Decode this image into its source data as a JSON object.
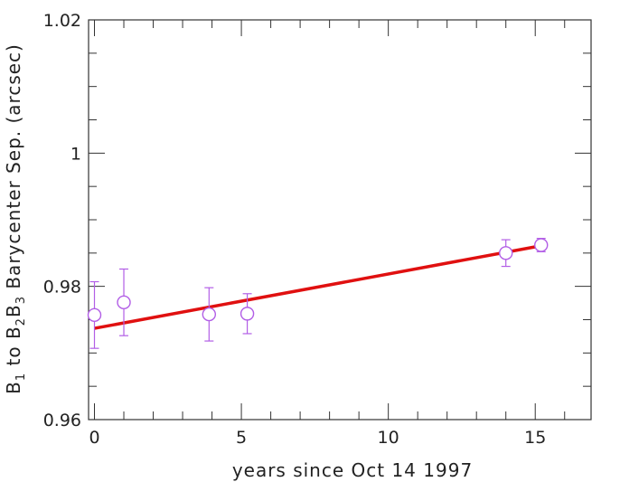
{
  "chart_data": {
    "type": "scatter",
    "title": "",
    "xlabel": "years since Oct 14 1997",
    "ylabel": {
      "parts": [
        "B",
        "1",
        " to B",
        "2",
        "B",
        "3",
        " Barycenter Sep. (arcsec)"
      ]
    },
    "xlim": [
      -0.2,
      16.9
    ],
    "ylim": [
      0.96,
      1.02
    ],
    "x_ticks": [
      0,
      5,
      10,
      15
    ],
    "x_tick_labels": [
      "0",
      "5",
      "10",
      "15"
    ],
    "y_ticks": [
      0.96,
      0.98,
      1.0,
      1.02
    ],
    "y_tick_labels": [
      "0.96",
      "0.98",
      "1",
      "1.02"
    ],
    "x_minor_step": 1,
    "y_minor_step": 0.005,
    "grid": false,
    "series": [
      {
        "kind": "points_with_errorbars",
        "color": "#b25ee6",
        "marker": "open-circle",
        "x": [
          0.0,
          1.0,
          3.9,
          5.2,
          14.0,
          15.2
        ],
        "y": [
          0.9757,
          0.9776,
          0.9758,
          0.9759,
          0.985,
          0.9862
        ],
        "yerr": [
          0.005,
          0.005,
          0.004,
          0.003,
          0.002,
          0.001
        ]
      },
      {
        "kind": "fit_line",
        "color": "#e01010",
        "x": [
          0.0,
          15.2
        ],
        "y": [
          0.9737,
          0.9861
        ]
      }
    ]
  }
}
